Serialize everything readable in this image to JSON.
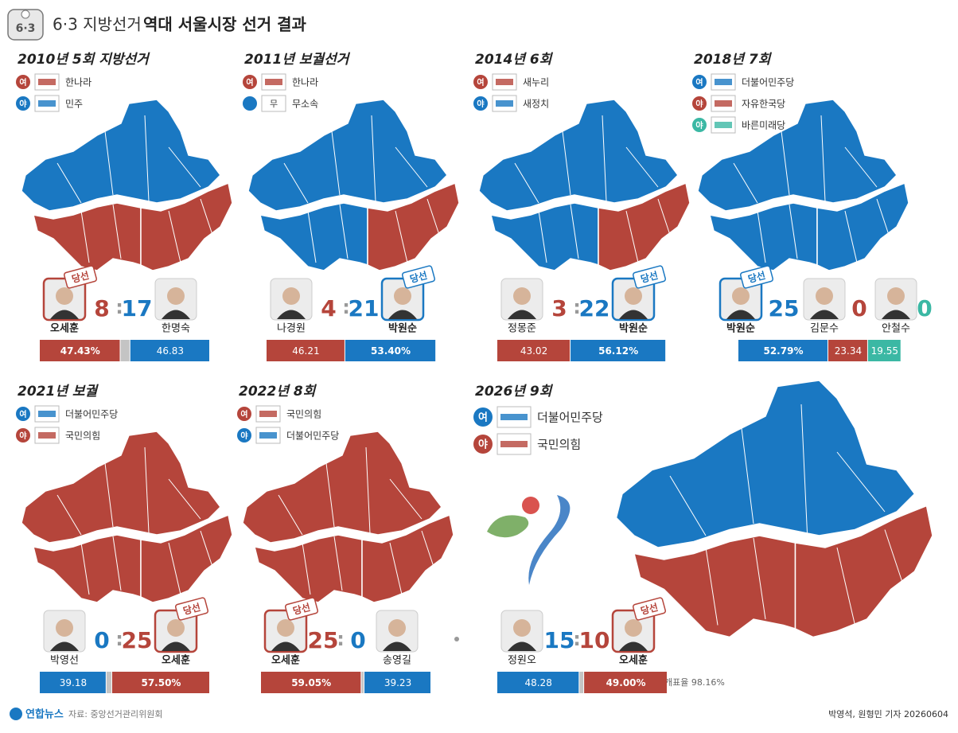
{
  "header": {
    "icon": "6·3",
    "title_prefix": "6·3 지방선거",
    "title": "역대 서울시장 선거 결과"
  },
  "winner_label": "당선",
  "separator": ":",
  "panels": [
    {
      "title": "2010년 5회 지방선거",
      "legend": [
        {
          "badge": "여",
          "color": "#b5453b",
          "party": "한나라"
        },
        {
          "badge": "야",
          "color": "#1a78c2",
          "party": "민주"
        }
      ],
      "map_colors": [
        "#1a78c2",
        "#b5453b",
        "#b5453b"
      ],
      "candidates": [
        {
          "name": "오세훈",
          "seats": 8,
          "votes": 47.43,
          "vote_label": "47.43%",
          "color": "#b5453b",
          "winner": true
        },
        {
          "name": "한명숙",
          "seats": 17,
          "votes": 46.83,
          "color": "#1a78c2"
        }
      ]
    },
    {
      "title": "2011년 보궐선거",
      "legend": [
        {
          "badge": "여",
          "color": "#b5453b",
          "party": "한나라"
        },
        {
          "color": "#1a78c2",
          "logo_text": "무",
          "party": "무소속"
        }
      ],
      "map_colors": [
        "#1a78c2",
        "#1a78c2",
        "#b5453b"
      ],
      "candidates": [
        {
          "name": "나경원",
          "seats": 4,
          "votes": 46.21,
          "color": "#b5453b"
        },
        {
          "name": "박원순",
          "seats": 21,
          "votes": 53.4,
          "vote_label": "53.40%",
          "color": "#1a78c2",
          "winner": true
        }
      ]
    },
    {
      "title": "2014년 6회",
      "legend": [
        {
          "badge": "여",
          "color": "#b5453b",
          "party": "새누리"
        },
        {
          "badge": "야",
          "color": "#1a78c2",
          "party": "새정치"
        }
      ],
      "map_colors": [
        "#1a78c2",
        "#1a78c2",
        "#b5453b"
      ],
      "candidates": [
        {
          "name": "정몽준",
          "seats": 3,
          "votes": 43.02,
          "color": "#b5453b"
        },
        {
          "name": "박원순",
          "seats": 22,
          "votes": 56.12,
          "vote_label": "56.12%",
          "color": "#1a78c2",
          "winner": true
        }
      ]
    },
    {
      "title": "2018년 7회",
      "legend": [
        {
          "badge": "여",
          "color": "#1a78c2",
          "party": "더불어민주당"
        },
        {
          "badge": "야",
          "color": "#b5453b",
          "party": "자유한국당"
        },
        {
          "badge": "야",
          "color": "#3bb8a4",
          "party": "바른미래당"
        }
      ],
      "map_colors": [
        "#1a78c2",
        "#1a78c2",
        "#1a78c2"
      ],
      "candidates": [
        {
          "name": "박원순",
          "seats": 25,
          "votes": 52.79,
          "vote_label": "52.79%",
          "color": "#1a78c2",
          "winner": true
        },
        {
          "name": "김문수",
          "seats": 0,
          "votes": 23.34,
          "color": "#b5453b"
        },
        {
          "name": "안철수",
          "seats": 0,
          "votes": 19.55,
          "color": "#3bb8a4"
        }
      ]
    },
    {
      "title": "2021년 보궐",
      "legend": [
        {
          "badge": "여",
          "color": "#1a78c2",
          "party": "더불어민주당"
        },
        {
          "badge": "야",
          "color": "#b5453b",
          "party": "국민의힘"
        }
      ],
      "map_colors": [
        "#b5453b",
        "#b5453b",
        "#b5453b"
      ],
      "candidates": [
        {
          "name": "박영선",
          "seats": 0,
          "votes": 39.18,
          "color": "#1a78c2"
        },
        {
          "name": "오세훈",
          "seats": 25,
          "votes": 57.5,
          "vote_label": "57.50%",
          "color": "#b5453b",
          "winner": true
        }
      ]
    },
    {
      "title": "2022년 8회",
      "legend": [
        {
          "badge": "여",
          "color": "#b5453b",
          "party": "국민의힘"
        },
        {
          "badge": "야",
          "color": "#1a78c2",
          "party": "더불어민주당"
        }
      ],
      "map_colors": [
        "#b5453b",
        "#b5453b",
        "#b5453b"
      ],
      "candidates": [
        {
          "name": "오세훈",
          "seats": 25,
          "votes": 59.05,
          "vote_label": "59.05%",
          "color": "#b5453b",
          "winner": true
        },
        {
          "name": "송영길",
          "seats": 0,
          "votes": 39.23,
          "color": "#1a78c2"
        }
      ]
    },
    {
      "title": "2026년 9회",
      "legend": [
        {
          "badge": "여",
          "color": "#1a78c2",
          "party": "더불어민주당"
        },
        {
          "badge": "야",
          "color": "#b5453b",
          "party": "국민의힘"
        }
      ],
      "map_colors": [
        "#1a78c2",
        "#b5453b",
        "#b5453b"
      ],
      "candidates": [
        {
          "name": "정원오",
          "seats": 15,
          "votes": 48.28,
          "color": "#1a78c2"
        },
        {
          "name": "오세훈",
          "seats": 10,
          "votes": 49,
          "vote_label": "49.00%",
          "color": "#b5453b",
          "winner": true
        }
      ]
    }
  ],
  "note": "개표율 98.16%",
  "footer": {
    "brand": "연합뉴스",
    "source": "자료: 중앙선거관리위원회",
    "credit": "박영석, 원형민 기자 20260604"
  }
}
